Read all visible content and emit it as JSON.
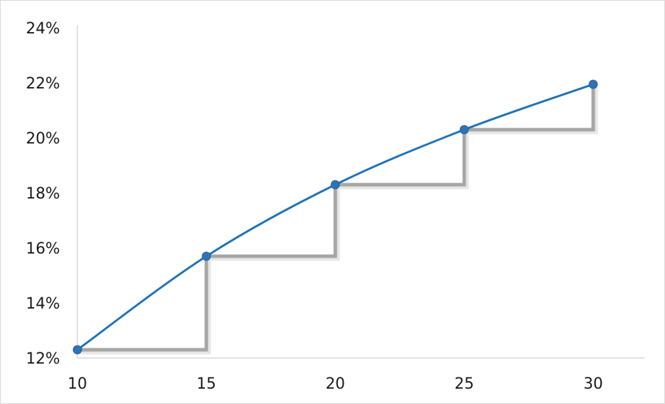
{
  "chart_data": {
    "type": "line",
    "title": "",
    "xlabel": "",
    "ylabel": "",
    "xlim": [
      10,
      32
    ],
    "ylim": [
      12,
      24
    ],
    "x_ticks": [
      "10",
      "15",
      "20",
      "25",
      "30"
    ],
    "x_tick_values": [
      10,
      15,
      20,
      25,
      30
    ],
    "y_ticks": [
      "12%",
      "14%",
      "16%",
      "18%",
      "20%",
      "22%",
      "24%"
    ],
    "y_tick_values": [
      12,
      14,
      16,
      18,
      20,
      22,
      24
    ],
    "grid": false,
    "legend": "none",
    "series": [
      {
        "x": [
          10,
          15,
          20,
          25,
          30
        ],
        "y": [
          12.3,
          15.7,
          18.3,
          20.3,
          21.95
        ],
        "color": "#1f72b8",
        "marker": "circle"
      }
    ],
    "step_overlay": {
      "type": "step",
      "color": "#a6a6a6",
      "x": [
        10,
        15,
        20,
        25,
        30
      ],
      "y": [
        12.3,
        15.7,
        18.3,
        20.3,
        21.95
      ]
    }
  }
}
